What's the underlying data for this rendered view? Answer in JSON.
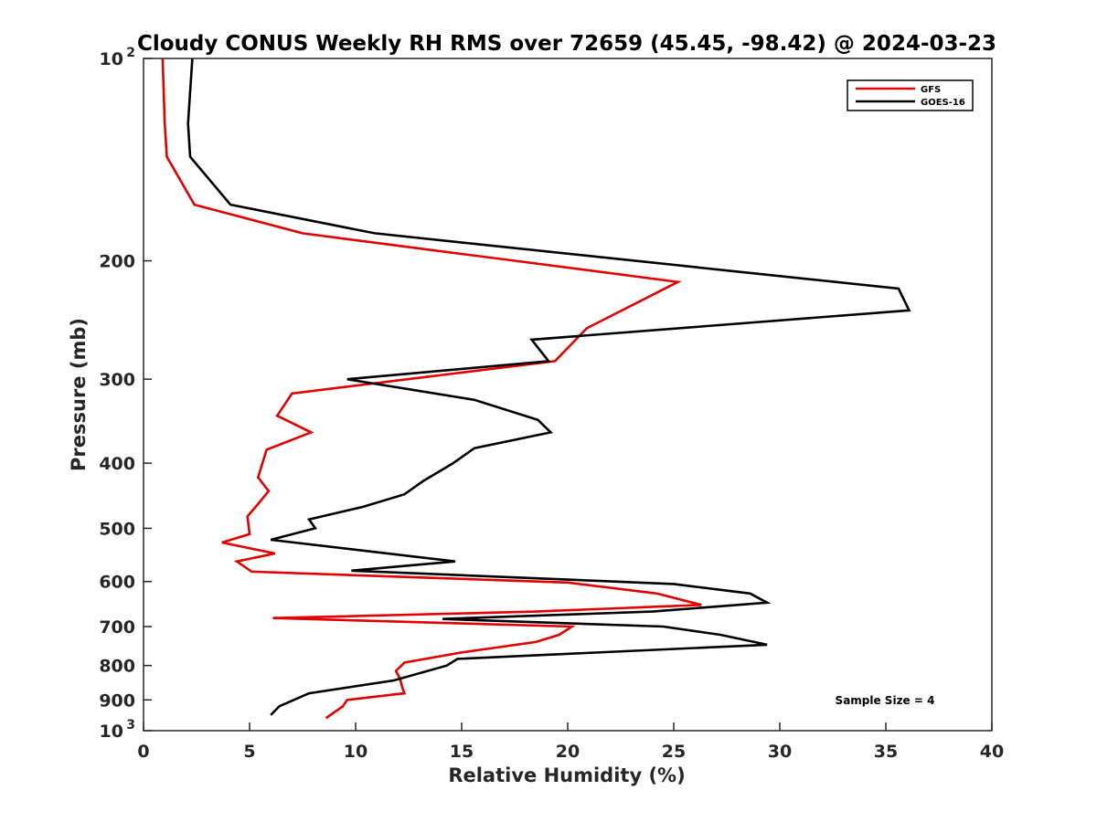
{
  "chart_data": {
    "type": "line",
    "title": "Cloudy CONUS Weekly RH RMS over 72659 (45.45, -98.42) @ 2024-03-23",
    "xlabel": "Relative Humidity (%)",
    "ylabel": "Pressure (mb)",
    "xlim": [
      0,
      40
    ],
    "ylim": [
      100,
      1000
    ],
    "y_scale": "log",
    "y_reversed": true,
    "x_ticks": [
      "0",
      "5",
      "10",
      "15",
      "20",
      "25",
      "30",
      "35",
      "40"
    ],
    "y_ticks": [
      {
        "value": 100,
        "label": "10",
        "sup": "2"
      },
      {
        "value": 200,
        "label": "200",
        "sup": ""
      },
      {
        "value": 300,
        "label": "300",
        "sup": ""
      },
      {
        "value": 400,
        "label": "400",
        "sup": ""
      },
      {
        "value": 500,
        "label": "500",
        "sup": ""
      },
      {
        "value": 600,
        "label": "600",
        "sup": ""
      },
      {
        "value": 700,
        "label": "700",
        "sup": ""
      },
      {
        "value": 800,
        "label": "800",
        "sup": ""
      },
      {
        "value": 900,
        "label": "900",
        "sup": ""
      },
      {
        "value": 1000,
        "label": "10",
        "sup": "3"
      }
    ],
    "legend_position": "top-right",
    "grid": false,
    "annotation": "Sample Size = 4",
    "series": [
      {
        "name": "GFS",
        "color": "#e00000",
        "points": [
          [
            0.9,
            100
          ],
          [
            1.0,
            125
          ],
          [
            1.1,
            140
          ],
          [
            2.4,
            165
          ],
          [
            7.5,
            182
          ],
          [
            25.2,
            215
          ],
          [
            20.9,
            252
          ],
          [
            19.4,
            282
          ],
          [
            7.0,
            315
          ],
          [
            6.3,
            340
          ],
          [
            7.9,
            360
          ],
          [
            5.8,
            382
          ],
          [
            5.4,
            420
          ],
          [
            5.9,
            440
          ],
          [
            5.4,
            460
          ],
          [
            4.9,
            480
          ],
          [
            5.0,
            510
          ],
          [
            3.7,
            525
          ],
          [
            6.2,
            545
          ],
          [
            4.4,
            560
          ],
          [
            5.1,
            580
          ],
          [
            20.0,
            602
          ],
          [
            24.2,
            625
          ],
          [
            26.3,
            650
          ],
          [
            18.5,
            665
          ],
          [
            6.1,
            680
          ],
          [
            20.2,
            700
          ],
          [
            19.6,
            720
          ],
          [
            18.5,
            738
          ],
          [
            15.0,
            765
          ],
          [
            12.3,
            792
          ],
          [
            11.9,
            815
          ],
          [
            12.1,
            838
          ],
          [
            12.2,
            862
          ],
          [
            12.3,
            880
          ],
          [
            9.6,
            900
          ],
          [
            9.4,
            920
          ],
          [
            8.6,
            958
          ]
        ]
      },
      {
        "name": "GOES-16",
        "color": "#000000",
        "points": [
          [
            2.3,
            100
          ],
          [
            2.1,
            125
          ],
          [
            2.2,
            140
          ],
          [
            4.1,
            165
          ],
          [
            10.9,
            182
          ],
          [
            35.6,
            220
          ],
          [
            36.1,
            237
          ],
          [
            18.3,
            262
          ],
          [
            19.1,
            282
          ],
          [
            9.6,
            300
          ],
          [
            15.6,
            322
          ],
          [
            18.6,
            345
          ],
          [
            19.2,
            360
          ],
          [
            15.6,
            380
          ],
          [
            14.6,
            400
          ],
          [
            13.2,
            425
          ],
          [
            12.3,
            445
          ],
          [
            10.3,
            465
          ],
          [
            7.8,
            485
          ],
          [
            8.1,
            500
          ],
          [
            6.0,
            520
          ],
          [
            14.7,
            560
          ],
          [
            9.8,
            578
          ],
          [
            25.0,
            605
          ],
          [
            28.6,
            625
          ],
          [
            29.4,
            645
          ],
          [
            24.0,
            665
          ],
          [
            14.1,
            682
          ],
          [
            24.5,
            700
          ],
          [
            27.2,
            720
          ],
          [
            29.4,
            745
          ],
          [
            14.8,
            782
          ],
          [
            14.3,
            800
          ],
          [
            11.8,
            842
          ],
          [
            7.8,
            880
          ],
          [
            6.4,
            920
          ],
          [
            6.0,
            948
          ]
        ]
      }
    ]
  }
}
